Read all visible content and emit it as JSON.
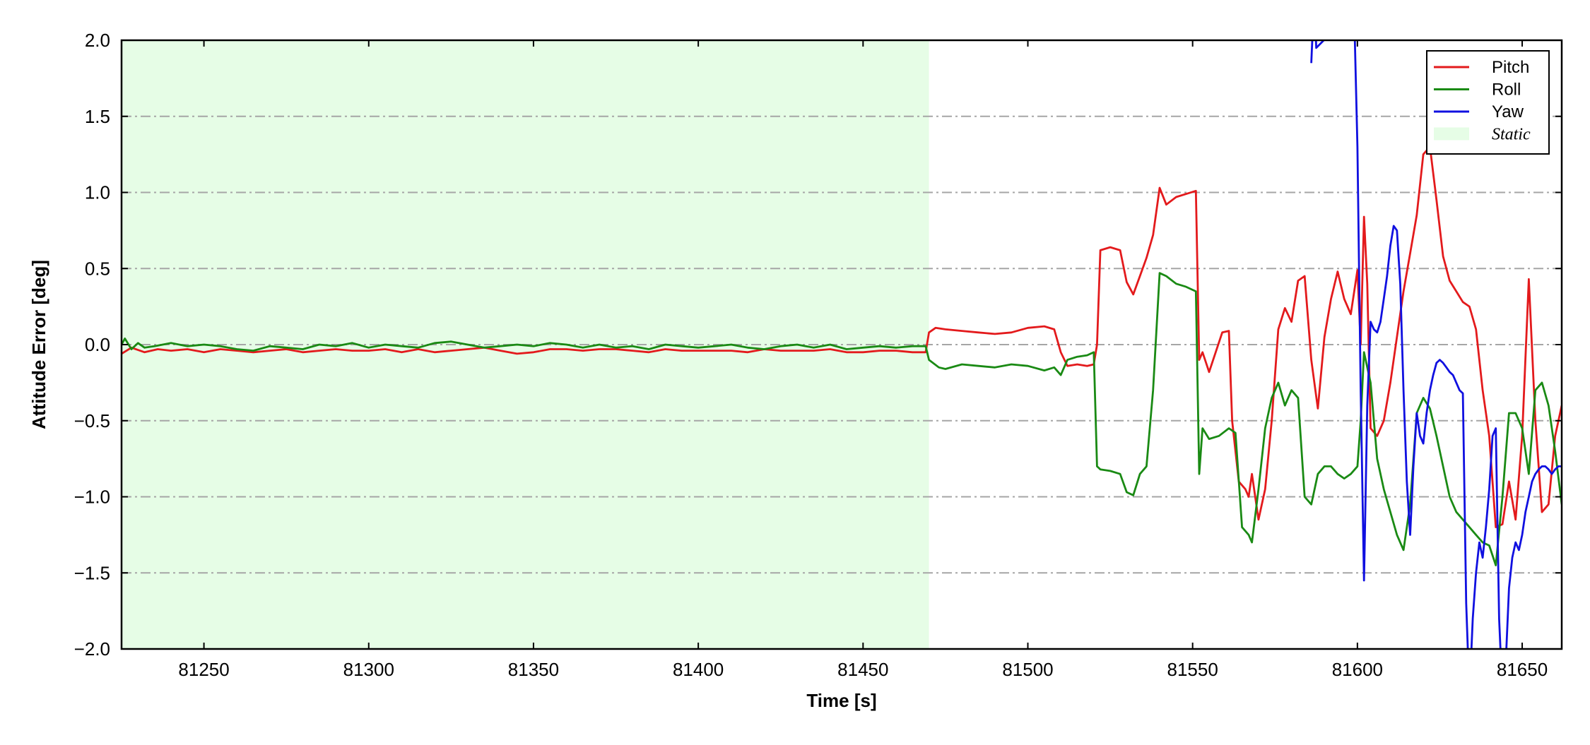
{
  "chart_data": {
    "type": "line",
    "xlabel": "Time [s]",
    "ylabel": "Attitude Error [deg]",
    "xlim": [
      81225,
      81662
    ],
    "ylim": [
      -2.0,
      2.0
    ],
    "xticks": [
      81250,
      81300,
      81350,
      81400,
      81450,
      81500,
      81550,
      81600,
      81650
    ],
    "xtick_labels": [
      "81250",
      "81300",
      "81350",
      "81400",
      "81450",
      "81500",
      "81550",
      "81600",
      "81650"
    ],
    "yticks": [
      -2.0,
      -1.5,
      -1.0,
      -0.5,
      0.0,
      0.5,
      1.0,
      1.5,
      2.0
    ],
    "ytick_labels": [
      "−2.0",
      "−1.5",
      "−1.0",
      "−0.5",
      "0.0",
      "0.5",
      "1.0",
      "1.5",
      "2.0"
    ],
    "grid": "horizontal dash-dot",
    "legend_position": "top-right",
    "shaded_region": {
      "name": "Static",
      "x_start": 81225,
      "x_end": 81470,
      "color": "#e6fde6"
    },
    "series": [
      {
        "name": "Pitch",
        "color": "#e31a1c",
        "x": [
          81225,
          81228,
          81232,
          81236,
          81240,
          81245,
          81250,
          81255,
          81260,
          81265,
          81270,
          81275,
          81280,
          81285,
          81290,
          81295,
          81300,
          81305,
          81310,
          81315,
          81320,
          81325,
          81330,
          81335,
          81340,
          81345,
          81350,
          81355,
          81360,
          81365,
          81370,
          81375,
          81380,
          81385,
          81390,
          81395,
          81400,
          81405,
          81410,
          81415,
          81420,
          81425,
          81430,
          81435,
          81440,
          81445,
          81450,
          81455,
          81460,
          81465,
          81469,
          81470,
          81472,
          81475,
          81480,
          81485,
          81490,
          81495,
          81500,
          81505,
          81508,
          81510,
          81512,
          81515,
          81518,
          81520,
          81521,
          81522,
          81525,
          81528,
          81530,
          81532,
          81534,
          81536,
          81538,
          81540,
          81542,
          81545,
          81548,
          81551,
          81552,
          81553,
          81555,
          81557,
          81559,
          81561,
          81562,
          81564,
          81566,
          81567,
          81568,
          81570,
          81572,
          81574,
          81576,
          81578,
          81580,
          81582,
          81584,
          81586,
          81588,
          81590,
          81592,
          81594,
          81596,
          81598,
          81600,
          81601,
          81602,
          81603,
          81604,
          81606,
          81608,
          81610,
          81612,
          81614,
          81616,
          81618,
          81620,
          81622,
          81624,
          81626,
          81628,
          81630,
          81632,
          81634,
          81636,
          81638,
          81640,
          81642,
          81644,
          81646,
          81648,
          81650,
          81652,
          81654,
          81656,
          81658,
          81660,
          81662
        ],
        "values": [
          -0.06,
          -0.02,
          -0.05,
          -0.03,
          -0.04,
          -0.03,
          -0.05,
          -0.03,
          -0.04,
          -0.05,
          -0.04,
          -0.03,
          -0.05,
          -0.04,
          -0.03,
          -0.04,
          -0.04,
          -0.03,
          -0.05,
          -0.03,
          -0.05,
          -0.04,
          -0.03,
          -0.02,
          -0.04,
          -0.06,
          -0.05,
          -0.03,
          -0.03,
          -0.04,
          -0.03,
          -0.03,
          -0.04,
          -0.05,
          -0.03,
          -0.04,
          -0.04,
          -0.04,
          -0.04,
          -0.05,
          -0.03,
          -0.04,
          -0.04,
          -0.04,
          -0.03,
          -0.05,
          -0.05,
          -0.04,
          -0.04,
          -0.05,
          -0.05,
          0.08,
          0.11,
          0.1,
          0.09,
          0.08,
          0.07,
          0.08,
          0.11,
          0.12,
          0.1,
          -0.05,
          -0.14,
          -0.13,
          -0.14,
          -0.13,
          0.0,
          0.62,
          0.64,
          0.62,
          0.41,
          0.33,
          0.45,
          0.57,
          0.72,
          1.03,
          0.92,
          0.97,
          0.99,
          1.01,
          -0.1,
          -0.05,
          -0.18,
          -0.05,
          0.08,
          0.09,
          -0.5,
          -0.9,
          -0.95,
          -1.0,
          -0.85,
          -1.15,
          -0.95,
          -0.5,
          0.1,
          0.24,
          0.15,
          0.42,
          0.45,
          -0.1,
          -0.42,
          0.05,
          0.3,
          0.48,
          0.3,
          0.2,
          0.49,
          0.0,
          0.84,
          0.4,
          -0.55,
          -0.6,
          -0.5,
          -0.25,
          0.05,
          0.35,
          0.6,
          0.85,
          1.25,
          1.3,
          0.95,
          0.58,
          0.42,
          0.35,
          0.28,
          0.25,
          0.1,
          -0.3,
          -0.6,
          -1.2,
          -1.18,
          -0.9,
          -1.15,
          -0.6,
          0.43,
          -0.5,
          -1.1,
          -1.05,
          -0.6,
          -0.4
        ]
      },
      {
        "name": "Roll",
        "color": "#1a8a14",
        "x": [
          81225,
          81226,
          81228,
          81230,
          81232,
          81235,
          81240,
          81245,
          81250,
          81255,
          81260,
          81265,
          81270,
          81275,
          81280,
          81285,
          81290,
          81295,
          81300,
          81305,
          81310,
          81315,
          81320,
          81325,
          81330,
          81335,
          81340,
          81345,
          81350,
          81355,
          81360,
          81365,
          81370,
          81375,
          81380,
          81385,
          81390,
          81395,
          81400,
          81405,
          81410,
          81415,
          81420,
          81425,
          81430,
          81435,
          81440,
          81445,
          81450,
          81455,
          81460,
          81465,
          81469,
          81470,
          81473,
          81475,
          81480,
          81485,
          81490,
          81495,
          81500,
          81505,
          81508,
          81510,
          81512,
          81515,
          81518,
          81520,
          81521,
          81522,
          81525,
          81528,
          81530,
          81532,
          81534,
          81536,
          81538,
          81540,
          81542,
          81545,
          81548,
          81551,
          81552,
          81553,
          81555,
          81558,
          81561,
          81563,
          81565,
          81567,
          81568,
          81570,
          81572,
          81574,
          81576,
          81578,
          81580,
          81582,
          81584,
          81586,
          81588,
          81590,
          81592,
          81594,
          81596,
          81598,
          81600,
          81601,
          81602,
          81604,
          81606,
          81608,
          81610,
          81612,
          81614,
          81616,
          81618,
          81620,
          81622,
          81624,
          81626,
          81628,
          81630,
          81632,
          81634,
          81636,
          81638,
          81640,
          81642,
          81644,
          81646,
          81648,
          81650,
          81652,
          81654,
          81656,
          81658,
          81660,
          81662
        ],
        "values": [
          0.0,
          0.04,
          -0.03,
          0.01,
          -0.02,
          -0.01,
          0.01,
          -0.01,
          0.0,
          -0.01,
          -0.03,
          -0.04,
          -0.01,
          -0.02,
          -0.03,
          0.0,
          -0.01,
          0.01,
          -0.02,
          0.0,
          -0.01,
          -0.02,
          0.01,
          0.02,
          0.0,
          -0.02,
          -0.01,
          0.0,
          -0.01,
          0.01,
          0.0,
          -0.02,
          0.0,
          -0.02,
          -0.01,
          -0.03,
          0.0,
          -0.01,
          -0.02,
          -0.01,
          0.0,
          -0.02,
          -0.03,
          -0.01,
          0.0,
          -0.02,
          0.0,
          -0.03,
          -0.02,
          -0.01,
          -0.02,
          -0.01,
          -0.01,
          -0.1,
          -0.15,
          -0.16,
          -0.13,
          -0.14,
          -0.15,
          -0.13,
          -0.14,
          -0.17,
          -0.15,
          -0.2,
          -0.1,
          -0.08,
          -0.07,
          -0.05,
          -0.8,
          -0.82,
          -0.83,
          -0.85,
          -0.97,
          -0.99,
          -0.85,
          -0.8,
          -0.3,
          0.47,
          0.45,
          0.4,
          0.38,
          0.35,
          -0.85,
          -0.55,
          -0.62,
          -0.6,
          -0.55,
          -0.58,
          -1.2,
          -1.25,
          -1.3,
          -0.95,
          -0.55,
          -0.35,
          -0.25,
          -0.4,
          -0.3,
          -0.35,
          -1.0,
          -1.05,
          -0.85,
          -0.8,
          -0.8,
          -0.85,
          -0.88,
          -0.85,
          -0.8,
          -0.5,
          -0.05,
          -0.25,
          -0.75,
          -0.95,
          -1.1,
          -1.25,
          -1.35,
          -1.05,
          -0.45,
          -0.35,
          -0.42,
          -0.6,
          -0.8,
          -1.0,
          -1.1,
          -1.15,
          -1.2,
          -1.25,
          -1.3,
          -1.32,
          -1.45,
          -1.0,
          -0.45,
          -0.45,
          -0.55,
          -0.85,
          -0.3,
          -0.25,
          -0.4,
          -0.7,
          -1.05
        ]
      },
      {
        "name": "Yaw",
        "color": "#1010e0",
        "x": [
          81586,
          81586.5,
          81587,
          81587.5,
          81599,
          81600,
          81601,
          81602,
          81603,
          81604,
          81605,
          81606,
          81607,
          81608,
          81609,
          81610,
          81611,
          81612,
          81613,
          81614,
          81615,
          81616,
          81617,
          81618,
          81619,
          81620,
          81621,
          81622,
          81623,
          81624,
          81625,
          81626,
          81627,
          81628,
          81629,
          81630,
          81631,
          81632,
          81633,
          81634,
          81635,
          81636,
          81637,
          81638,
          81639,
          81640,
          81641,
          81642,
          81643,
          81644,
          81645,
          81646,
          81647,
          81648,
          81649,
          81650,
          81651,
          81652,
          81653,
          81654,
          81655,
          81656,
          81657,
          81658,
          81659,
          81660,
          81661,
          81662
        ],
        "values": [
          1.85,
          2.1,
          2.3,
          1.95,
          2.2,
          1.3,
          -0.3,
          -1.55,
          -0.4,
          0.15,
          0.1,
          0.08,
          0.15,
          0.3,
          0.45,
          0.65,
          0.78,
          0.75,
          0.4,
          -0.3,
          -0.9,
          -1.25,
          -0.8,
          -0.45,
          -0.6,
          -0.65,
          -0.45,
          -0.3,
          -0.2,
          -0.12,
          -0.1,
          -0.12,
          -0.15,
          -0.18,
          -0.2,
          -0.25,
          -0.3,
          -0.32,
          -1.7,
          -2.3,
          -1.8,
          -1.5,
          -1.3,
          -1.4,
          -1.2,
          -0.95,
          -0.6,
          -0.55,
          -1.8,
          -2.3,
          -2.1,
          -1.6,
          -1.4,
          -1.3,
          -1.35,
          -1.25,
          -1.1,
          -1.0,
          -0.9,
          -0.85,
          -0.82,
          -0.8,
          -0.8,
          -0.82,
          -0.85,
          -0.82,
          -0.8,
          -0.8
        ]
      }
    ]
  }
}
